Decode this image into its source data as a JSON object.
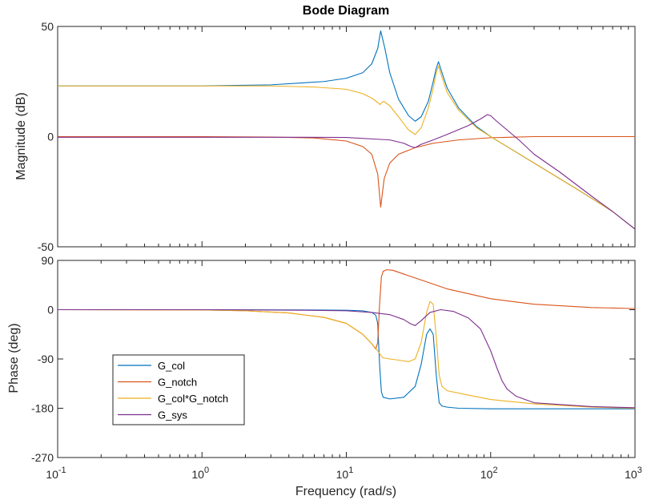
{
  "chart_data": {
    "type": "line",
    "title": "Bode Diagram",
    "xlabel": "Frequency  (rad/s)",
    "xscale": "log",
    "xlim": [
      0.1,
      1000
    ],
    "x_tick_labels": [
      {
        "value": 0.1,
        "base": "10",
        "exp": "-1"
      },
      {
        "value": 1,
        "base": "10",
        "exp": "0"
      },
      {
        "value": 10,
        "base": "10",
        "exp": "1"
      },
      {
        "value": 100,
        "base": "10",
        "exp": "2"
      },
      {
        "value": 1000,
        "base": "10",
        "exp": "3"
      }
    ],
    "legend": {
      "position": "lower-left of phase panel"
    },
    "panels": [
      {
        "name": "magnitude",
        "ylabel": "Magnitude (dB)",
        "ylim": [
          -50,
          50
        ],
        "yticks": [
          {
            "value": 50,
            "label": "50"
          },
          {
            "value": 0,
            "label": "0"
          },
          {
            "value": -50,
            "label": "-50"
          }
        ],
        "series": [
          {
            "name": "G_col",
            "color": "#0072BD",
            "x": [
              0.1,
              1,
              3,
              7,
              10,
              13,
              15,
              16.5,
              17.3,
              18.5,
              20,
              23,
              27,
              30,
              33,
              37,
              40,
              42,
              43.5,
              46,
              50,
              60,
              80,
              100,
              200,
              400,
              700,
              1000
            ],
            "y": [
              23,
              23,
              23.5,
              25,
              26.5,
              29,
              33,
              40,
              48,
              40,
              29,
              17,
              9.5,
              7,
              9,
              16,
              25,
              31,
              34,
              29,
              22,
              13,
              4.5,
              0,
              -12,
              -24,
              -34,
              -42
            ]
          },
          {
            "name": "G_notch",
            "color": "#D95319",
            "x": [
              0.1,
              1,
              3,
              6,
              10,
              13,
              15,
              16.5,
              17.3,
              18.3,
              20,
              23,
              30,
              40,
              60,
              100,
              200,
              1000
            ],
            "y": [
              0,
              0,
              -0.2,
              -0.6,
              -2,
              -4.5,
              -8,
              -17,
              -32,
              -19,
              -12,
              -8,
              -5,
              -3,
              -1.5,
              -0.5,
              0,
              0
            ]
          },
          {
            "name": "G_col*G_notch",
            "color": "#EDB120",
            "x": [
              0.1,
              1,
              3,
              6,
              10,
              13,
              15,
              16.5,
              17.1,
              17.6,
              18.2,
              20,
              23,
              27,
              30,
              33,
              37,
              40,
              42,
              43.5,
              46,
              50,
              60,
              80,
              100,
              200,
              400,
              700,
              1000
            ],
            "y": [
              23,
              23,
              23,
              22.5,
              21.5,
              19.5,
              17.5,
              15.5,
              14.5,
              15.5,
              16,
              14,
              9,
              3,
              1,
              4,
              13,
              22,
              29,
              32,
              27,
              20,
              12,
              4,
              0,
              -12,
              -24,
              -34,
              -42
            ]
          },
          {
            "name": "G_sys",
            "color": "#7E2F8E",
            "x": [
              0.1,
              1,
              5,
              10,
              20,
              25,
              28,
              30,
              33,
              40,
              50,
              70,
              85,
              95,
              100,
              110,
              130,
              160,
              200,
              300,
              500,
              700,
              1000
            ],
            "y": [
              -0.3,
              -0.3,
              -0.3,
              -0.4,
              -1.5,
              -3,
              -4.5,
              -5,
              -3.5,
              -1.5,
              1,
              5,
              8,
              10,
              9.5,
              7,
              3,
              -2,
              -8,
              -16,
              -27,
              -34,
              -42
            ]
          }
        ]
      },
      {
        "name": "phase",
        "ylabel": "Phase (deg)",
        "ylim": [
          -270,
          90
        ],
        "yticks": [
          {
            "value": 90,
            "label": "90"
          },
          {
            "value": 0,
            "label": "0"
          },
          {
            "value": -90,
            "label": "-90"
          },
          {
            "value": -180,
            "label": "-180"
          },
          {
            "value": -270,
            "label": "-270"
          }
        ],
        "series": [
          {
            "name": "G_col",
            "color": "#0072BD",
            "x": [
              0.1,
              1,
              5,
              10,
              13,
              15,
              16,
              16.5,
              17,
              17.5,
              18,
              20,
              25,
              30,
              33,
              36,
              38,
              40,
              42,
              44,
              46,
              50,
              60,
              100,
              1000
            ],
            "y": [
              0,
              0,
              -0.5,
              -1,
              -2,
              -5,
              -10,
              -25,
              -100,
              -150,
              -160,
              -163,
              -160,
              -140,
              -100,
              -45,
              -35,
              -45,
              -120,
              -170,
              -176,
              -178,
              -180,
              -181,
              -181
            ]
          },
          {
            "name": "G_notch",
            "color": "#D95319",
            "x": [
              0.1,
              1,
              2,
              4,
              7,
              10,
              13,
              15,
              16,
              16.5,
              17,
              17.5,
              18,
              19,
              21,
              25,
              35,
              50,
              100,
              200,
              500,
              1000
            ],
            "y": [
              0,
              -0.5,
              -2,
              -6,
              -14,
              -25,
              -45,
              -62,
              -72,
              -60,
              10,
              60,
              70,
              73,
              72,
              65,
              52,
              38,
              20,
              10,
              4,
              2
            ]
          },
          {
            "name": "G_col*G_notch",
            "color": "#EDB120",
            "x": [
              0.1,
              1,
              2,
              4,
              7,
              10,
              13,
              15,
              16.5,
              17,
              17.5,
              18,
              20,
              23,
              27,
              30,
              33,
              36,
              38,
              40,
              42,
              44,
              46,
              50,
              70,
              100,
              200,
              500,
              1000
            ],
            "y": [
              0,
              -0.5,
              -2,
              -6,
              -14,
              -25,
              -45,
              -62,
              -75,
              -80,
              -85,
              -88,
              -90,
              -92,
              -95,
              -90,
              -60,
              -5,
              15,
              10,
              -50,
              -120,
              -140,
              -148,
              -156,
              -164,
              -172,
              -178,
              -180
            ]
          },
          {
            "name": "G_sys",
            "color": "#7E2F8E",
            "x": [
              0.1,
              1,
              5,
              10,
              15,
              20,
              25,
              28,
              30,
              33,
              38,
              45,
              55,
              70,
              85,
              100,
              110,
              120,
              130,
              150,
              200,
              500,
              1000
            ],
            "y": [
              0,
              0,
              -1,
              -2,
              -5,
              -9,
              -18,
              -26,
              -29,
              -20,
              -5,
              0,
              -3,
              -15,
              -35,
              -75,
              -105,
              -130,
              -145,
              -158,
              -170,
              -177,
              -179
            ]
          }
        ]
      }
    ]
  }
}
